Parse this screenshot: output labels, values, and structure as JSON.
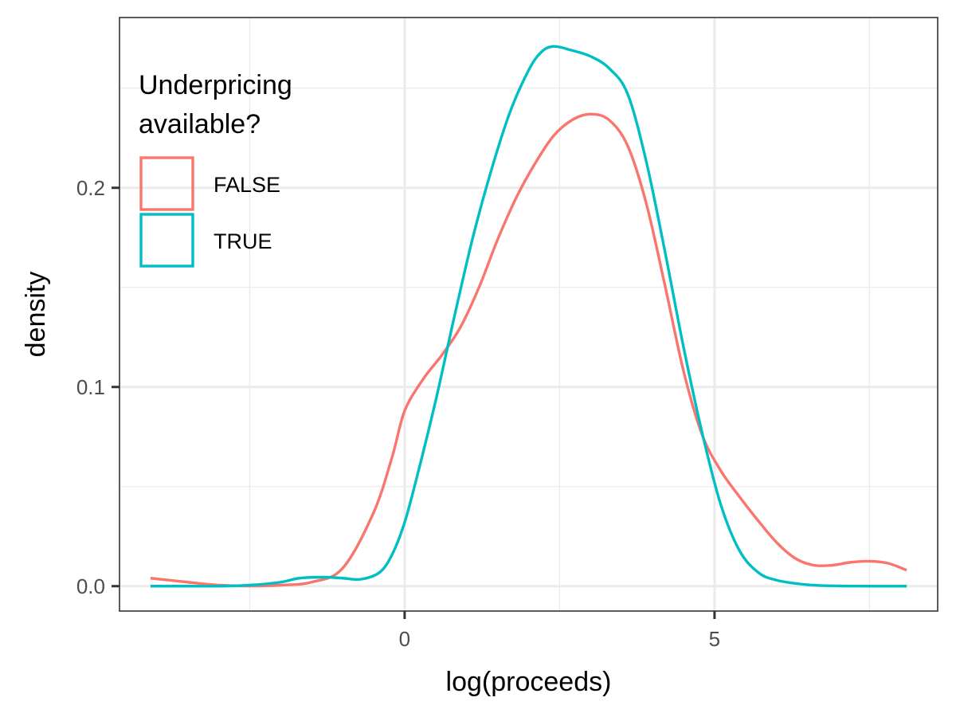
{
  "chart_data": {
    "type": "line",
    "title": "",
    "xlabel": "log(proceeds)",
    "ylabel": "density",
    "xlim": [
      -4.6,
      8.6
    ],
    "ylim": [
      -0.0125,
      0.2855
    ],
    "x_ticks": [
      0,
      5
    ],
    "x_tick_labels": [
      "0",
      "5"
    ],
    "x_minor": [
      -2.5,
      2.5,
      7.5
    ],
    "y_ticks": [
      0.0,
      0.1,
      0.2
    ],
    "y_tick_labels": [
      "0.0",
      "0.1",
      "0.2"
    ],
    "y_minor": [
      0.05,
      0.15,
      0.25
    ],
    "grid": true,
    "legend": {
      "title_lines": [
        "Underpricing",
        "available?"
      ],
      "placement": "top-left inside"
    },
    "series": [
      {
        "name": "FALSE",
        "color": "#F8766D",
        "points": [
          [
            -4.1,
            0.004
          ],
          [
            -3.5,
            0.002
          ],
          [
            -3.0,
            0.0005
          ],
          [
            -2.5,
            0.0001
          ],
          [
            -2.0,
            0.0005
          ],
          [
            -1.5,
            0.002
          ],
          [
            -1.0,
            0.009
          ],
          [
            -0.5,
            0.037
          ],
          [
            -0.2,
            0.065
          ],
          [
            0.0,
            0.088
          ],
          [
            0.3,
            0.104
          ],
          [
            0.6,
            0.116
          ],
          [
            0.9,
            0.13
          ],
          [
            1.2,
            0.15
          ],
          [
            1.5,
            0.174
          ],
          [
            1.8,
            0.195
          ],
          [
            2.1,
            0.212
          ],
          [
            2.4,
            0.226
          ],
          [
            2.7,
            0.234
          ],
          [
            3.0,
            0.237
          ],
          [
            3.3,
            0.234
          ],
          [
            3.6,
            0.221
          ],
          [
            3.9,
            0.192
          ],
          [
            4.2,
            0.151
          ],
          [
            4.5,
            0.108
          ],
          [
            4.8,
            0.076
          ],
          [
            5.1,
            0.058
          ],
          [
            5.4,
            0.045
          ],
          [
            5.7,
            0.033
          ],
          [
            6.0,
            0.022
          ],
          [
            6.3,
            0.014
          ],
          [
            6.6,
            0.0105
          ],
          [
            6.9,
            0.0105
          ],
          [
            7.2,
            0.012
          ],
          [
            7.5,
            0.0125
          ],
          [
            7.8,
            0.0115
          ],
          [
            8.1,
            0.008
          ]
        ]
      },
      {
        "name": "TRUE",
        "color": "#00BFC4",
        "points": [
          [
            -4.1,
            0.0
          ],
          [
            -3.5,
            0.0
          ],
          [
            -3.0,
            0.0
          ],
          [
            -2.5,
            0.0005
          ],
          [
            -2.0,
            0.002
          ],
          [
            -1.7,
            0.004
          ],
          [
            -1.3,
            0.0045
          ],
          [
            -1.0,
            0.004
          ],
          [
            -0.7,
            0.0035
          ],
          [
            -0.4,
            0.007
          ],
          [
            -0.2,
            0.016
          ],
          [
            0.0,
            0.032
          ],
          [
            0.2,
            0.055
          ],
          [
            0.5,
            0.093
          ],
          [
            0.8,
            0.135
          ],
          [
            1.1,
            0.175
          ],
          [
            1.4,
            0.209
          ],
          [
            1.7,
            0.238
          ],
          [
            2.0,
            0.259
          ],
          [
            2.2,
            0.268
          ],
          [
            2.4,
            0.271
          ],
          [
            2.7,
            0.269
          ],
          [
            3.0,
            0.266
          ],
          [
            3.3,
            0.26
          ],
          [
            3.6,
            0.247
          ],
          [
            3.9,
            0.213
          ],
          [
            4.2,
            0.168
          ],
          [
            4.5,
            0.12
          ],
          [
            4.8,
            0.077
          ],
          [
            5.1,
            0.041
          ],
          [
            5.4,
            0.018
          ],
          [
            5.7,
            0.007
          ],
          [
            6.0,
            0.003
          ],
          [
            6.5,
            0.0007
          ],
          [
            7.0,
            0.0001
          ],
          [
            7.5,
            0.0
          ],
          [
            8.1,
            0.0
          ]
        ]
      }
    ]
  }
}
